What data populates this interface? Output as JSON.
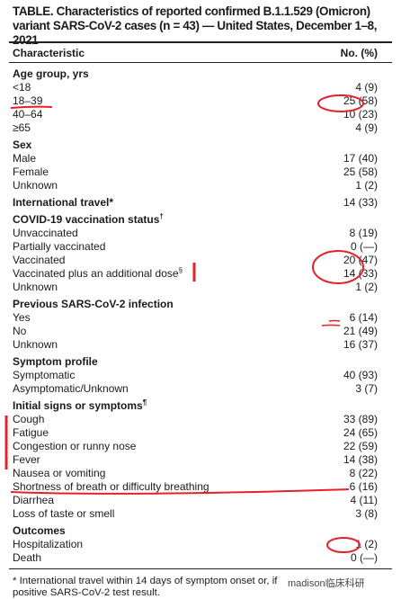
{
  "title": "TABLE. Characteristics of reported confirmed B.1.1.529 (Omicron) variant SARS-CoV-2 cases (n = 43) — United States, December 1–8, 2021",
  "header": {
    "characteristic": "Characteristic",
    "number": "No. (%)"
  },
  "sections": [
    {
      "heading": "Age group, yrs",
      "rows": [
        {
          "label": "<18",
          "value": "4 (9)"
        },
        {
          "label": "18–39",
          "value": "25 (58)"
        },
        {
          "label": "40–64",
          "value": "10 (23)"
        },
        {
          "label": "≥65",
          "value": "4 (9)"
        }
      ]
    },
    {
      "heading": "Sex",
      "rows": [
        {
          "label": "Male",
          "value": "17 (40)"
        },
        {
          "label": "Female",
          "value": "25 (58)"
        },
        {
          "label": "Unknown",
          "value": "1 (2)"
        }
      ]
    },
    {
      "heading": "International travel*",
      "value": "14 (33)",
      "rows": []
    },
    {
      "heading": "COVID-19 vaccination status†",
      "rows": [
        {
          "label": "Unvaccinated",
          "value": "8 (19)"
        },
        {
          "label": "Partially vaccinated",
          "value": "0 (—)"
        },
        {
          "label": "Vaccinated",
          "value": "20 (47)"
        },
        {
          "label": "Vaccinated plus an additional dose§",
          "value": "14 (33)"
        },
        {
          "label": "Unknown",
          "value": "1 (2)"
        }
      ]
    },
    {
      "heading": "Previous SARS-CoV-2 infection",
      "rows": [
        {
          "label": "Yes",
          "value": "6 (14)"
        },
        {
          "label": "No",
          "value": "21 (49)"
        },
        {
          "label": "Unknown",
          "value": "16 (37)"
        }
      ]
    },
    {
      "heading": "Symptom profile",
      "rows": [
        {
          "label": "Symptomatic",
          "value": "40 (93)"
        },
        {
          "label": "Asymptomatic/Unknown",
          "value": "3 (7)"
        }
      ]
    },
    {
      "heading": "Initial signs or symptoms¶",
      "rows": [
        {
          "label": "Cough",
          "value": "33 (89)"
        },
        {
          "label": "Fatigue",
          "value": "24 (65)"
        },
        {
          "label": "Congestion or runny nose",
          "value": "22 (59)"
        },
        {
          "label": "Fever",
          "value": "14 (38)"
        },
        {
          "label": "Nausea or vomiting",
          "value": "8 (22)"
        },
        {
          "label": "Shortness of breath or difficulty breathing",
          "value": "6 (16)"
        },
        {
          "label": "Diarrhea",
          "value": "4 (11)"
        },
        {
          "label": "Loss of taste or smell",
          "value": "3 (8)"
        }
      ]
    },
    {
      "heading": "Outcomes",
      "rows": [
        {
          "label": "Hospitalization",
          "value": "1 (2)"
        },
        {
          "label": "Death",
          "value": "0 (—)"
        }
      ]
    }
  ],
  "footnote": {
    "line1": "* International travel within 14 days of symptom onset or, if",
    "line2": "positive SARS-CoV-2 test result."
  },
  "watermark": "madison临床科研",
  "annotation_color": "#e8202a"
}
